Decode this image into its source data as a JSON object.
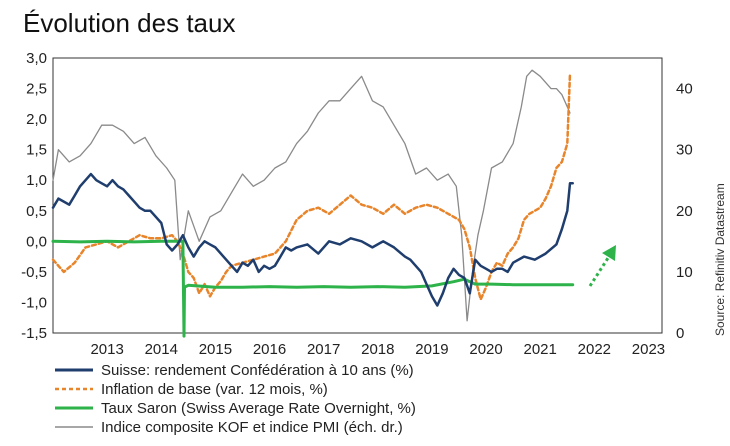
{
  "chart_data": {
    "type": "line",
    "title": "Évolution des taux",
    "source": "Source: Refinitiv Datastream",
    "x_ticks": [
      "2013",
      "2014",
      "2015",
      "2016",
      "2017",
      "2018",
      "2019",
      "2020",
      "2021",
      "2022",
      "2023"
    ],
    "xlim": [
      2012.5,
      2023.75
    ],
    "left_axis": {
      "ticks": [
        "3,0",
        "2,5",
        "2,0",
        "1,5",
        "1,0",
        "0,5",
        "0,0",
        "-0,5",
        "-1,0",
        "-1,5"
      ],
      "ylim": [
        -1.5,
        3.0
      ]
    },
    "right_axis": {
      "ticks": [
        "40",
        "30",
        "20",
        "10",
        "0"
      ],
      "ylim": [
        0,
        45
      ]
    },
    "grid": false,
    "legend_position": "bottom",
    "series": [
      {
        "name": "Suisse: rendement Confédération à 10 ans (%)",
        "axis": "left",
        "color": "#1f3e6e",
        "style": "solid",
        "x": [
          2012.5,
          2012.6,
          2012.7,
          2012.8,
          2012.9,
          2013.0,
          2013.1,
          2013.2,
          2013.3,
          2013.4,
          2013.5,
          2013.6,
          2013.7,
          2013.8,
          2013.9,
          2014.0,
          2014.1,
          2014.2,
          2014.3,
          2014.4,
          2014.5,
          2014.6,
          2014.7,
          2014.8,
          2014.9,
          2015.0,
          2015.1,
          2015.2,
          2015.3,
          2015.4,
          2015.5,
          2015.6,
          2015.7,
          2015.8,
          2015.9,
          2016.0,
          2016.1,
          2016.2,
          2016.3,
          2016.4,
          2016.5,
          2016.6,
          2016.7,
          2016.8,
          2016.9,
          2017.0,
          2017.2,
          2017.4,
          2017.6,
          2017.8,
          2018.0,
          2018.2,
          2018.4,
          2018.6,
          2018.8,
          2019.0,
          2019.1,
          2019.2,
          2019.3,
          2019.4,
          2019.5,
          2019.6,
          2019.7,
          2019.8,
          2019.9,
          2020.0,
          2020.1,
          2020.2,
          2020.3,
          2020.4,
          2020.5,
          2020.6,
          2020.7,
          2020.8,
          2020.9,
          2021.0,
          2021.2,
          2021.4,
          2021.6,
          2021.8,
          2021.9,
          2022.0,
          2022.05,
          2022.1
        ],
        "y": [
          0.55,
          0.7,
          0.65,
          0.6,
          0.75,
          0.9,
          1.0,
          1.1,
          1.0,
          0.95,
          0.9,
          1.0,
          0.9,
          0.85,
          0.75,
          0.65,
          0.55,
          0.5,
          0.5,
          0.4,
          0.3,
          -0.05,
          -0.15,
          -0.05,
          0.1,
          -0.1,
          -0.25,
          -0.1,
          0.0,
          -0.05,
          -0.1,
          -0.2,
          -0.3,
          -0.4,
          -0.5,
          -0.35,
          -0.4,
          -0.3,
          -0.5,
          -0.4,
          -0.45,
          -0.4,
          -0.25,
          -0.1,
          -0.15,
          -0.1,
          -0.05,
          -0.2,
          0.0,
          -0.05,
          0.05,
          0.0,
          -0.1,
          0.0,
          -0.1,
          -0.25,
          -0.3,
          -0.4,
          -0.5,
          -0.7,
          -0.9,
          -1.05,
          -0.85,
          -0.6,
          -0.45,
          -0.55,
          -0.6,
          -0.85,
          -0.3,
          -0.4,
          -0.45,
          -0.5,
          -0.45,
          -0.45,
          -0.5,
          -0.35,
          -0.25,
          -0.3,
          -0.2,
          -0.05,
          0.2,
          0.5,
          0.95,
          0.95
        ]
      },
      {
        "name": "Inflation de base (var. 12 mois, %)",
        "axis": "left",
        "color": "#e8842a",
        "style": "dashed",
        "x": [
          2012.5,
          2012.7,
          2012.9,
          2013.1,
          2013.3,
          2013.5,
          2013.7,
          2013.9,
          2014.1,
          2014.3,
          2014.5,
          2014.7,
          2014.8,
          2014.9,
          2015.0,
          2015.1,
          2015.2,
          2015.3,
          2015.4,
          2015.5,
          2015.6,
          2015.7,
          2015.8,
          2016.0,
          2016.2,
          2016.4,
          2016.6,
          2016.8,
          2017.0,
          2017.2,
          2017.4,
          2017.6,
          2017.8,
          2018.0,
          2018.2,
          2018.4,
          2018.6,
          2018.8,
          2019.0,
          2019.2,
          2019.4,
          2019.6,
          2019.8,
          2020.0,
          2020.1,
          2020.2,
          2020.3,
          2020.4,
          2020.5,
          2020.6,
          2020.7,
          2020.8,
          2020.9,
          2021.0,
          2021.1,
          2021.2,
          2021.3,
          2021.4,
          2021.5,
          2021.6,
          2021.7,
          2021.8,
          2021.9,
          2022.0,
          2022.05
        ],
        "y": [
          -0.3,
          -0.5,
          -0.35,
          -0.1,
          -0.05,
          0.0,
          -0.1,
          0.0,
          0.1,
          0.05,
          0.05,
          0.1,
          0.0,
          -0.2,
          -0.5,
          -0.6,
          -0.85,
          -0.7,
          -0.9,
          -0.75,
          -0.65,
          -0.5,
          -0.4,
          -0.35,
          -0.3,
          -0.25,
          -0.2,
          0.0,
          0.35,
          0.5,
          0.55,
          0.45,
          0.6,
          0.75,
          0.6,
          0.55,
          0.45,
          0.6,
          0.45,
          0.55,
          0.6,
          0.55,
          0.45,
          0.35,
          0.2,
          -0.1,
          -0.6,
          -0.95,
          -0.75,
          -0.5,
          -0.35,
          -0.4,
          -0.2,
          -0.1,
          0.05,
          0.35,
          0.45,
          0.5,
          0.55,
          0.7,
          0.9,
          1.2,
          1.3,
          1.6,
          2.75
        ]
      },
      {
        "name": "Taux Saron (Swiss Average Rate Overnight, %)",
        "axis": "left",
        "color": "#2db34a",
        "style": "solid",
        "x": [
          2012.5,
          2013.0,
          2013.5,
          2014.0,
          2014.5,
          2014.9,
          2014.92,
          2014.93,
          2015.0,
          2015.5,
          2016.0,
          2016.5,
          2017.0,
          2017.5,
          2018.0,
          2018.5,
          2019.0,
          2019.5,
          2019.9,
          2020.1,
          2020.3,
          2020.6,
          2021.0,
          2021.5,
          2022.0,
          2022.1
        ],
        "y": [
          0.0,
          -0.01,
          0.0,
          -0.01,
          0.0,
          0.0,
          -1.55,
          -0.75,
          -0.72,
          -0.75,
          -0.75,
          -0.74,
          -0.75,
          -0.74,
          -0.75,
          -0.74,
          -0.75,
          -0.73,
          -0.66,
          -0.62,
          -0.7,
          -0.7,
          -0.71,
          -0.71,
          -0.71,
          -0.71
        ]
      },
      {
        "name": "Indice composite KOF et indice PMI (éch. dr.)",
        "axis": "right",
        "color": "#8a8a8a",
        "style": "solid",
        "x": [
          2012.5,
          2012.6,
          2012.8,
          2013.0,
          2013.2,
          2013.4,
          2013.6,
          2013.8,
          2014.0,
          2014.2,
          2014.4,
          2014.6,
          2014.75,
          2014.85,
          2015.0,
          2015.2,
          2015.4,
          2015.6,
          2015.8,
          2016.0,
          2016.2,
          2016.4,
          2016.6,
          2016.8,
          2017.0,
          2017.2,
          2017.4,
          2017.6,
          2017.8,
          2018.0,
          2018.2,
          2018.4,
          2018.6,
          2018.8,
          2019.0,
          2019.2,
          2019.4,
          2019.6,
          2019.8,
          2019.95,
          2020.05,
          2020.15,
          2020.25,
          2020.35,
          2020.45,
          2020.6,
          2020.8,
          2021.0,
          2021.15,
          2021.25,
          2021.35,
          2021.5,
          2021.7,
          2021.8,
          2021.9,
          2022.0,
          2022.05
        ],
        "y": [
          25,
          30,
          28,
          29,
          31,
          34,
          34,
          33,
          31,
          32,
          29,
          27,
          25,
          12,
          20,
          15,
          19,
          20,
          23,
          26,
          24,
          25,
          27,
          28,
          31,
          33,
          36,
          38,
          38,
          40,
          42,
          38,
          37,
          34,
          31,
          26,
          27,
          25,
          26,
          24,
          16,
          2,
          10,
          16,
          20,
          27,
          28,
          31,
          37,
          42,
          43,
          42,
          40,
          40,
          39,
          37,
          36
        ]
      }
    ],
    "arrow_label": "",
    "arrow_color": "#2db34a"
  }
}
